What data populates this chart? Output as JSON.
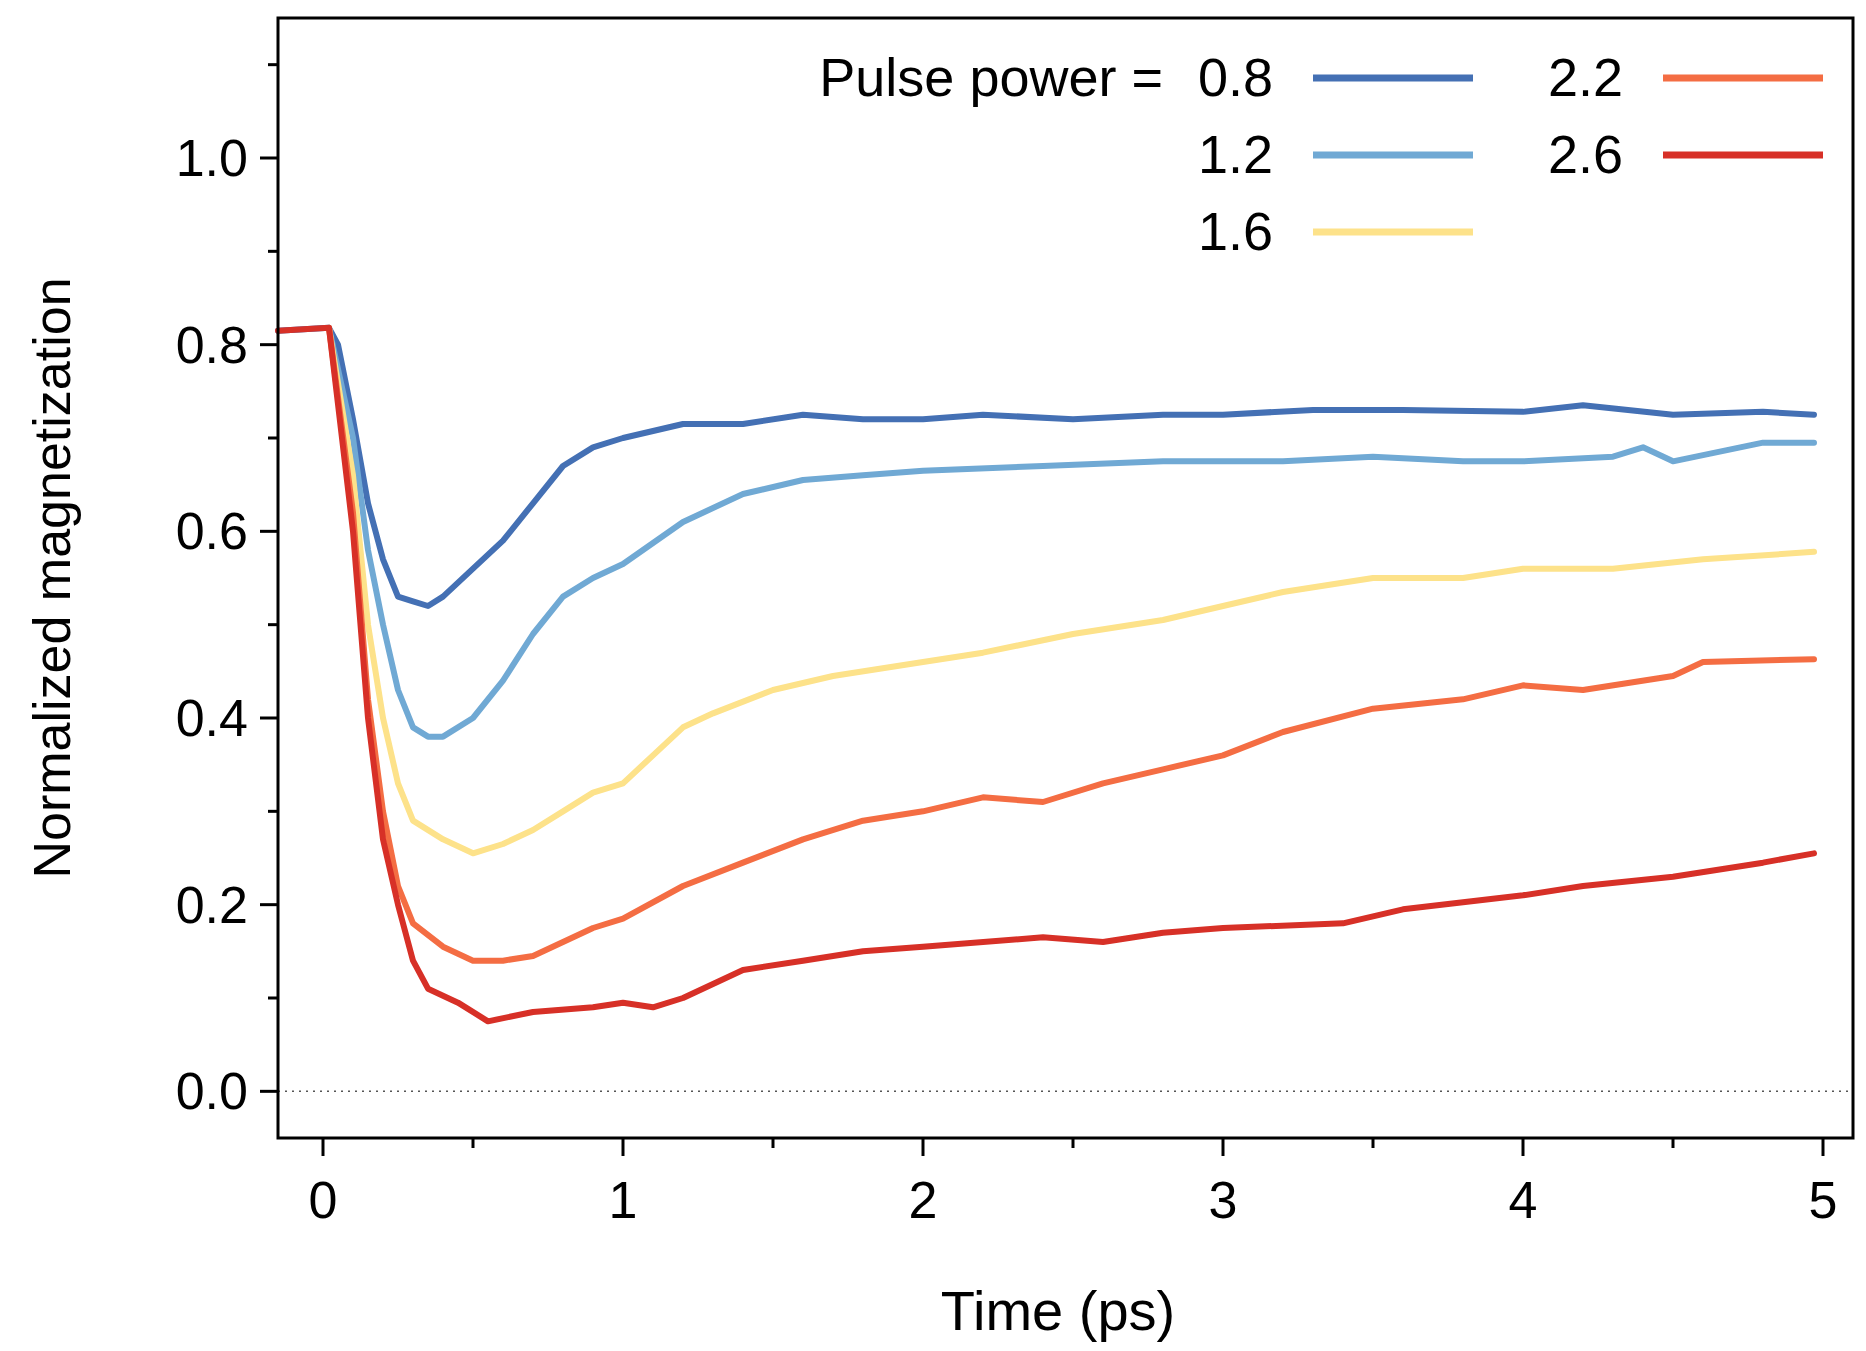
{
  "chart_data": {
    "type": "line",
    "xlabel": "Time (ps)",
    "ylabel": "Normalized magnetization",
    "legend_title": "Pulse power =",
    "legend": "top right",
    "grid": false,
    "marker": "none",
    "line_style": "solid",
    "xlim": [
      -0.15,
      5.1
    ],
    "ylim": [
      -0.05,
      1.15
    ],
    "xticks": [
      0,
      {
        "value": 0.5,
        "label": null
      },
      1,
      {
        "value": 1.5,
        "label": null
      },
      2,
      {
        "value": 2.5,
        "label": null
      },
      3,
      {
        "value": 3.5,
        "label": null
      },
      4,
      {
        "value": 4.5,
        "label": null
      },
      5
    ],
    "yticks": [
      {
        "value": 0,
        "label": "0.0"
      },
      {
        "value": 0.1,
        "label": null
      },
      {
        "value": 0.2,
        "label": "0.2"
      },
      {
        "value": 0.3,
        "label": null
      },
      {
        "value": 0.4,
        "label": "0.4"
      },
      {
        "value": 0.5,
        "label": null
      },
      {
        "value": 0.6,
        "label": "0.6"
      },
      {
        "value": 0.7,
        "label": null
      },
      {
        "value": 0.8,
        "label": "0.8"
      },
      {
        "value": 0.9,
        "label": null
      },
      {
        "value": 1.0,
        "label": "1.0"
      },
      {
        "value": 1.1,
        "label": null
      }
    ],
    "ref_lines": [
      {
        "axis": "y",
        "value": 0,
        "color": "#555555",
        "line_style": "dotted"
      }
    ],
    "series": [
      {
        "name": "0.8",
        "color": "#4470b4",
        "x": [
          -0.15,
          0.02,
          0.05,
          0.1,
          0.15,
          0.2,
          0.25,
          0.3,
          0.35,
          0.4,
          0.5,
          0.6,
          0.7,
          0.8,
          0.9,
          1.0,
          1.2,
          1.4,
          1.6,
          1.8,
          2.0,
          2.2,
          2.5,
          2.8,
          3.0,
          3.3,
          3.6,
          4.0,
          4.2,
          4.5,
          4.8,
          4.97
        ],
        "values": [
          0.815,
          0.818,
          0.8,
          0.72,
          0.63,
          0.57,
          0.53,
          0.525,
          0.52,
          0.53,
          0.56,
          0.59,
          0.63,
          0.67,
          0.69,
          0.7,
          0.715,
          0.715,
          0.725,
          0.72,
          0.72,
          0.725,
          0.72,
          0.725,
          0.725,
          0.73,
          0.73,
          0.728,
          0.735,
          0.725,
          0.728,
          0.725
        ]
      },
      {
        "name": "1.2",
        "color": "#70a9d4",
        "x": [
          0.02,
          0.1,
          0.15,
          0.2,
          0.25,
          0.3,
          0.35,
          0.4,
          0.5,
          0.6,
          0.7,
          0.8,
          0.9,
          1.0,
          1.2,
          1.4,
          1.6,
          1.8,
          2.0,
          2.4,
          2.8,
          3.2,
          3.5,
          3.8,
          4.0,
          4.3,
          4.4,
          4.5,
          4.8,
          4.97
        ],
        "values": [
          0.818,
          0.7,
          0.58,
          0.5,
          0.43,
          0.39,
          0.38,
          0.38,
          0.4,
          0.44,
          0.49,
          0.53,
          0.55,
          0.565,
          0.61,
          0.64,
          0.655,
          0.66,
          0.665,
          0.67,
          0.675,
          0.675,
          0.68,
          0.675,
          0.675,
          0.68,
          0.69,
          0.675,
          0.695,
          0.695
        ]
      },
      {
        "name": "1.6",
        "color": "#fde28a",
        "x": [
          0.02,
          0.1,
          0.15,
          0.2,
          0.25,
          0.3,
          0.4,
          0.5,
          0.6,
          0.7,
          0.8,
          0.9,
          1.0,
          1.1,
          1.2,
          1.3,
          1.5,
          1.7,
          2.0,
          2.2,
          2.5,
          2.8,
          3.0,
          3.2,
          3.5,
          3.8,
          4.0,
          4.3,
          4.6,
          4.97
        ],
        "values": [
          0.818,
          0.66,
          0.5,
          0.4,
          0.33,
          0.29,
          0.27,
          0.255,
          0.265,
          0.28,
          0.3,
          0.32,
          0.33,
          0.36,
          0.39,
          0.405,
          0.43,
          0.445,
          0.46,
          0.47,
          0.49,
          0.505,
          0.52,
          0.535,
          0.55,
          0.55,
          0.56,
          0.56,
          0.57,
          0.578
        ]
      },
      {
        "name": "2.2",
        "color": "#f46d43",
        "x": [
          0.02,
          0.1,
          0.15,
          0.2,
          0.25,
          0.3,
          0.4,
          0.5,
          0.6,
          0.7,
          0.8,
          0.9,
          1.0,
          1.2,
          1.4,
          1.6,
          1.8,
          2.0,
          2.2,
          2.4,
          2.6,
          2.8,
          3.0,
          3.2,
          3.5,
          3.8,
          4.0,
          4.2,
          4.5,
          4.6,
          4.97
        ],
        "values": [
          0.818,
          0.62,
          0.42,
          0.3,
          0.22,
          0.18,
          0.155,
          0.14,
          0.14,
          0.145,
          0.16,
          0.175,
          0.185,
          0.22,
          0.245,
          0.27,
          0.29,
          0.3,
          0.315,
          0.31,
          0.33,
          0.345,
          0.36,
          0.385,
          0.41,
          0.42,
          0.435,
          0.43,
          0.445,
          0.46,
          0.463
        ]
      },
      {
        "name": "2.6",
        "color": "#d73027",
        "x": [
          -0.15,
          0.02,
          0.1,
          0.15,
          0.2,
          0.25,
          0.3,
          0.35,
          0.45,
          0.55,
          0.7,
          0.9,
          1.0,
          1.1,
          1.2,
          1.4,
          1.6,
          1.8,
          2.0,
          2.4,
          2.6,
          2.8,
          3.0,
          3.4,
          3.6,
          4.0,
          4.2,
          4.5,
          4.8,
          4.97
        ],
        "values": [
          0.815,
          0.818,
          0.6,
          0.4,
          0.27,
          0.2,
          0.14,
          0.11,
          0.095,
          0.075,
          0.085,
          0.09,
          0.095,
          0.09,
          0.1,
          0.13,
          0.14,
          0.15,
          0.155,
          0.165,
          0.16,
          0.17,
          0.175,
          0.18,
          0.195,
          0.21,
          0.22,
          0.23,
          0.245,
          0.255
        ]
      }
    ]
  }
}
